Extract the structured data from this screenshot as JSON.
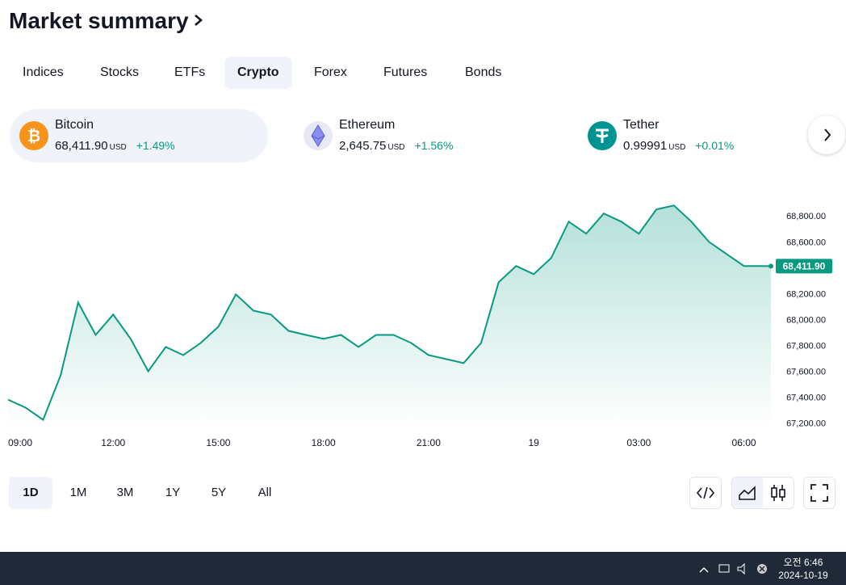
{
  "header": {
    "title": "Market summary"
  },
  "tabs": [
    "Indices",
    "Stocks",
    "ETFs",
    "Crypto",
    "Forex",
    "Futures",
    "Bonds"
  ],
  "active_tab": "Crypto",
  "tickers": [
    {
      "name": "Bitcoin",
      "price": "68,411.90",
      "currency": "USD",
      "change": "+1.49%"
    },
    {
      "name": "Ethereum",
      "price": "2,645.75",
      "currency": "USD",
      "change": "+1.56%"
    },
    {
      "name": "Tether",
      "price": "0.99991",
      "currency": "USD",
      "change": "+0.01%"
    }
  ],
  "chart": {
    "type": "line",
    "color": "#089981",
    "x": [
      0,
      0.5,
      1,
      1.5,
      2,
      2.5,
      3,
      3.5,
      4,
      4.5,
      5,
      5.5,
      6,
      6.5,
      7,
      7.5,
      8,
      8.5,
      9,
      9.5,
      10,
      10.5,
      11,
      11.5,
      12,
      12.5,
      13,
      13.5,
      14,
      14.5,
      15,
      15.5,
      16,
      16.5,
      17,
      17.5,
      18,
      18.5,
      19,
      19.5,
      20,
      20.5,
      21,
      21.5,
      21.77
    ],
    "values": [
      67381,
      67319,
      67225,
      67569,
      68131,
      67881,
      68038,
      67850,
      67600,
      67788,
      67725,
      67819,
      67944,
      68194,
      68069,
      68038,
      67913,
      67881,
      67850,
      67881,
      67788,
      67881,
      67881,
      67819,
      67725,
      67694,
      67663,
      67819,
      68288,
      68413,
      68350,
      68475,
      68756,
      68663,
      68819,
      68756,
      68663,
      68850,
      68881,
      68756,
      68600,
      68506,
      68413,
      68413,
      68411.9
    ],
    "last_label": "68,411.90",
    "xlim": [
      0,
      21.77
    ],
    "xticks": [
      {
        "value": 0,
        "label": "09:00"
      },
      {
        "value": 3,
        "label": "12:00"
      },
      {
        "value": 6,
        "label": "15:00"
      },
      {
        "value": 9,
        "label": "18:00"
      },
      {
        "value": 12,
        "label": "21:00"
      },
      {
        "value": 15,
        "label": "19"
      },
      {
        "value": 18,
        "label": "03:00"
      },
      {
        "value": 21,
        "label": "06:00"
      }
    ],
    "ylim": [
      67160,
      68970
    ],
    "yticks": [
      {
        "value": 67200,
        "label": "67,200.00"
      },
      {
        "value": 67400,
        "label": "67,400.00"
      },
      {
        "value": 67600,
        "label": "67,600.00"
      },
      {
        "value": 67800,
        "label": "67,800.00"
      },
      {
        "value": 68000,
        "label": "68,000.00"
      },
      {
        "value": 68200,
        "label": "68,200.00"
      },
      {
        "value": 68600,
        "label": "68,600.00"
      },
      {
        "value": 68800,
        "label": "68,800.00"
      }
    ]
  },
  "ranges": [
    "1D",
    "1M",
    "3M",
    "1Y",
    "5Y",
    "All"
  ],
  "active_range": "1D",
  "taskbar": {
    "time": "오전 6:46",
    "date": "2024-10-19"
  }
}
